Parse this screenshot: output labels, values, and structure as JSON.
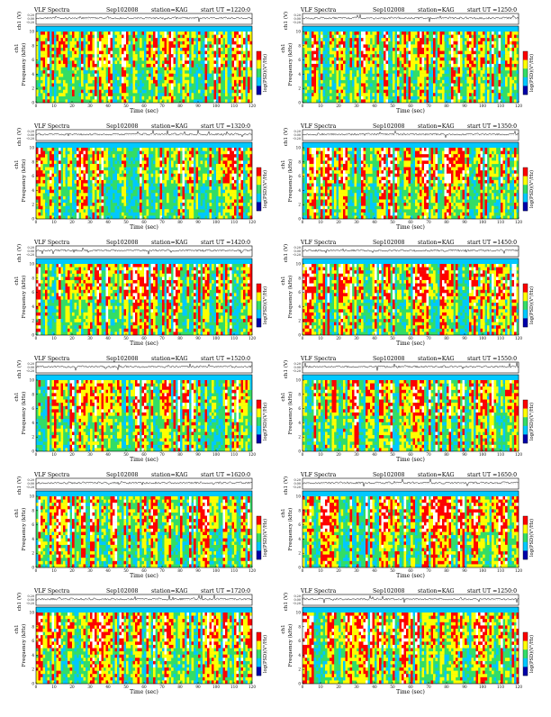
{
  "colors": {
    "scale_low": "#0000aa",
    "scale_mid_low": "#00c8ff",
    "scale_mid": "#33dd66",
    "scale_mid_high": "#ffff00",
    "scale_high": "#ff0000",
    "saturated": "#ffffff"
  },
  "chart_data": [
    {
      "type": "heatmap",
      "title": "VLF Spectra",
      "date": "Sep102008",
      "station": "station=KAG",
      "start_ut": "start UT =1220:0",
      "panel_id": "1220",
      "xlabel": "Time (sec)",
      "ylabel": "Frequency (kHz)",
      "trace_label": "ch1 (V)",
      "colorbar_label": "log(PSD)(V²/Hz)",
      "xlim": [
        0,
        120
      ],
      "xticks": [
        "0",
        "10",
        "20",
        "30",
        "40",
        "50",
        "60",
        "70",
        "80",
        "90",
        "100",
        "110",
        "120"
      ],
      "ylim": [
        0,
        10
      ],
      "yticks": [
        "0",
        "2",
        "4",
        "6",
        "8",
        "10"
      ],
      "trace_ylim": [
        -0.2,
        0.2
      ],
      "trace_ticks": [
        "0.20",
        "0.00",
        "-0.20"
      ]
    },
    {
      "type": "heatmap",
      "title": "VLF Spectra",
      "date": "Sep102008",
      "station": "station=KAG",
      "start_ut": "start UT =1250:0",
      "panel_id": "1250",
      "xlabel": "Time (sec)",
      "ylabel": "Frequency (kHz)",
      "trace_label": "ch1 (V)",
      "colorbar_label": "log(PSD)(V²/Hz)",
      "xlim": [
        0,
        120
      ],
      "xticks": [
        "0",
        "10",
        "20",
        "30",
        "40",
        "50",
        "60",
        "70",
        "80",
        "90",
        "100",
        "110",
        "120"
      ],
      "ylim": [
        0,
        10
      ],
      "yticks": [
        "0",
        "2",
        "4",
        "6",
        "8",
        "10"
      ],
      "trace_ylim": [
        -0.2,
        0.2
      ],
      "trace_ticks": [
        "0.20",
        "0.00",
        "-0.20"
      ]
    },
    {
      "type": "heatmap",
      "title": "VLF Spectra",
      "date": "Sep102008",
      "station": "station=KAG",
      "start_ut": "start UT =1320:0",
      "panel_id": "1320",
      "xlabel": "Time (sec)",
      "ylabel": "Frequency (kHz)",
      "trace_label": "ch1 (V)",
      "colorbar_label": "log(PSD)(V²/Hz)",
      "xlim": [
        0,
        120
      ],
      "xticks": [
        "0",
        "10",
        "20",
        "30",
        "40",
        "50",
        "60",
        "70",
        "80",
        "90",
        "100",
        "110",
        "120"
      ],
      "ylim": [
        0,
        10
      ],
      "yticks": [
        "0",
        "2",
        "4",
        "6",
        "8",
        "10"
      ],
      "trace_ylim": [
        -0.2,
        0.2
      ],
      "trace_ticks": [
        "0.20",
        "0.00",
        "-0.20"
      ]
    },
    {
      "type": "heatmap",
      "title": "VLF Spectra",
      "date": "Sep102008",
      "station": "station=KAG",
      "start_ut": "start UT =1350:0",
      "panel_id": "1350",
      "xlabel": "Time (sec)",
      "ylabel": "Frequency (kHz)",
      "trace_label": "ch1 (V)",
      "colorbar_label": "log(PSD)(V²/Hz)",
      "xlim": [
        0,
        120
      ],
      "xticks": [
        "0",
        "10",
        "20",
        "30",
        "40",
        "50",
        "60",
        "70",
        "80",
        "90",
        "100",
        "110",
        "120"
      ],
      "ylim": [
        0,
        10
      ],
      "yticks": [
        "0",
        "2",
        "4",
        "6",
        "8",
        "10"
      ],
      "trace_ylim": [
        -0.2,
        0.2
      ],
      "trace_ticks": [
        "0.20",
        "0.00",
        "-0.20"
      ]
    },
    {
      "type": "heatmap",
      "title": "VLF Spectra",
      "date": "Sep102008",
      "station": "station=KAG",
      "start_ut": "start UT =1420:0",
      "panel_id": "1420",
      "xlabel": "Time (sec)",
      "ylabel": "Frequency (kHz)",
      "trace_label": "ch1 (V)",
      "colorbar_label": "log(PSD)(V²/Hz)",
      "xlim": [
        0,
        120
      ],
      "xticks": [
        "0",
        "10",
        "20",
        "30",
        "40",
        "50",
        "60",
        "70",
        "80",
        "90",
        "100",
        "110",
        "120"
      ],
      "ylim": [
        0,
        10
      ],
      "yticks": [
        "0",
        "2",
        "4",
        "6",
        "8",
        "10"
      ],
      "trace_ylim": [
        -0.2,
        0.2
      ],
      "trace_ticks": [
        "0.20",
        "0.00",
        "-0.20"
      ]
    },
    {
      "type": "heatmap",
      "title": "VLF Spectra",
      "date": "Sep102008",
      "station": "station=KAG",
      "start_ut": "start UT =1450:0",
      "panel_id": "1450",
      "xlabel": "Time (sec)",
      "ylabel": "Frequency (kHz)",
      "trace_label": "ch1 (V)",
      "colorbar_label": "log(PSD)(V²/Hz)",
      "xlim": [
        0,
        120
      ],
      "xticks": [
        "0",
        "10",
        "20",
        "30",
        "40",
        "50",
        "60",
        "70",
        "80",
        "90",
        "100",
        "110",
        "120"
      ],
      "ylim": [
        0,
        10
      ],
      "yticks": [
        "0",
        "2",
        "4",
        "6",
        "8",
        "10"
      ],
      "trace_ylim": [
        -0.2,
        0.2
      ],
      "trace_ticks": [
        "0.20",
        "0.00",
        "-0.20"
      ]
    },
    {
      "type": "heatmap",
      "title": "VLF Spectra",
      "date": "Sep102008",
      "station": "station=KAG",
      "start_ut": "start UT =1520:0",
      "panel_id": "1520",
      "xlabel": "Time (sec)",
      "ylabel": "Frequency (kHz)",
      "trace_label": "ch1 (V)",
      "colorbar_label": "log(PSD)(V²/Hz)",
      "xlim": [
        0,
        120
      ],
      "xticks": [
        "0",
        "10",
        "20",
        "30",
        "40",
        "50",
        "60",
        "70",
        "80",
        "90",
        "100",
        "110",
        "120"
      ],
      "ylim": [
        0,
        10
      ],
      "yticks": [
        "0",
        "2",
        "4",
        "6",
        "8",
        "10"
      ],
      "trace_ylim": [
        -0.2,
        0.2
      ],
      "trace_ticks": [
        "0.20",
        "0.00",
        "-0.20"
      ]
    },
    {
      "type": "heatmap",
      "title": "VLF Spectra",
      "date": "Sep102008",
      "station": "station=KAG",
      "start_ut": "start UT =1550:0",
      "panel_id": "1550",
      "xlabel": "Time (sec)",
      "ylabel": "Frequency (kHz)",
      "trace_label": "ch1 (V)",
      "colorbar_label": "log(PSD)(V²/Hz)",
      "xlim": [
        0,
        120
      ],
      "xticks": [
        "0",
        "10",
        "20",
        "30",
        "40",
        "50",
        "60",
        "70",
        "80",
        "90",
        "100",
        "110",
        "120"
      ],
      "ylim": [
        0,
        10
      ],
      "yticks": [
        "0",
        "2",
        "4",
        "6",
        "8",
        "10"
      ],
      "trace_ylim": [
        -0.2,
        0.2
      ],
      "trace_ticks": [
        "0.20",
        "0.00",
        "-0.20"
      ]
    },
    {
      "type": "heatmap",
      "title": "VLF Spectra",
      "date": "Sep102008",
      "station": "station=KAG",
      "start_ut": "start UT =1620:0",
      "panel_id": "1620",
      "xlabel": "Time (sec)",
      "ylabel": "Frequency (kHz)",
      "trace_label": "ch1 (V)",
      "colorbar_label": "log(PSD)(V²/Hz)",
      "xlim": [
        0,
        120
      ],
      "xticks": [
        "0",
        "10",
        "20",
        "30",
        "40",
        "50",
        "60",
        "70",
        "80",
        "90",
        "100",
        "110",
        "120"
      ],
      "ylim": [
        0,
        10
      ],
      "yticks": [
        "0",
        "2",
        "4",
        "6",
        "8",
        "10"
      ],
      "trace_ylim": [
        -0.2,
        0.2
      ],
      "trace_ticks": [
        "0.20",
        "0.00",
        "-0.20"
      ]
    },
    {
      "type": "heatmap",
      "title": "VLF Spectra",
      "date": "Sep102008",
      "station": "station=KAG",
      "start_ut": "start UT =1650:0",
      "panel_id": "1650",
      "xlabel": "Time (sec)",
      "ylabel": "Frequency (kHz)",
      "trace_label": "ch1 (V)",
      "colorbar_label": "log(PSD)(V²/Hz)",
      "xlim": [
        0,
        120
      ],
      "xticks": [
        "0",
        "10",
        "20",
        "30",
        "40",
        "50",
        "60",
        "70",
        "80",
        "90",
        "100",
        "110",
        "120"
      ],
      "ylim": [
        0,
        10
      ],
      "yticks": [
        "0",
        "2",
        "4",
        "6",
        "8",
        "10"
      ],
      "trace_ylim": [
        -0.2,
        0.2
      ],
      "trace_ticks": [
        "0.20",
        "0.00",
        "-0.20"
      ]
    },
    {
      "type": "heatmap",
      "title": "VLF Spectra",
      "date": "Sep102008",
      "station": "station=KAG",
      "start_ut": "start UT =1720:0",
      "panel_id": "1720",
      "xlabel": "Time (sec)",
      "ylabel": "Frequency (kHz)",
      "trace_label": "ch1 (V)",
      "colorbar_label": "log(PSD)(V²/Hz)",
      "xlim": [
        0,
        120
      ],
      "xticks": [
        "0",
        "10",
        "20",
        "30",
        "40",
        "50",
        "60",
        "70",
        "80",
        "90",
        "100",
        "110",
        "120"
      ],
      "ylim": [
        0,
        10
      ],
      "yticks": [
        "0",
        "2",
        "4",
        "6",
        "8",
        "10"
      ],
      "trace_ylim": [
        -0.2,
        0.2
      ],
      "trace_ticks": [
        "0.20",
        "0.00",
        "-0.20"
      ]
    },
    {
      "type": "heatmap",
      "title": "VLF Spectra",
      "date": "Sep102008",
      "station": "station=KAG",
      "start_ut": "start UT =1250:0",
      "panel_id": "1250b",
      "xlabel": "Time (sec)",
      "ylabel": "Frequency (kHz)",
      "trace_label": "ch1 (V)",
      "colorbar_label": "log(PSD)(V²/Hz)",
      "xlim": [
        0,
        120
      ],
      "xticks": [
        "0",
        "10",
        "20",
        "30",
        "40",
        "50",
        "60",
        "70",
        "80",
        "90",
        "100",
        "110",
        "120"
      ],
      "ylim": [
        0,
        10
      ],
      "yticks": [
        "0",
        "2",
        "4",
        "6",
        "8",
        "10"
      ],
      "trace_ylim": [
        -0.2,
        0.2
      ],
      "trace_ticks": [
        "0.20",
        "0.00",
        "-0.20"
      ]
    }
  ]
}
